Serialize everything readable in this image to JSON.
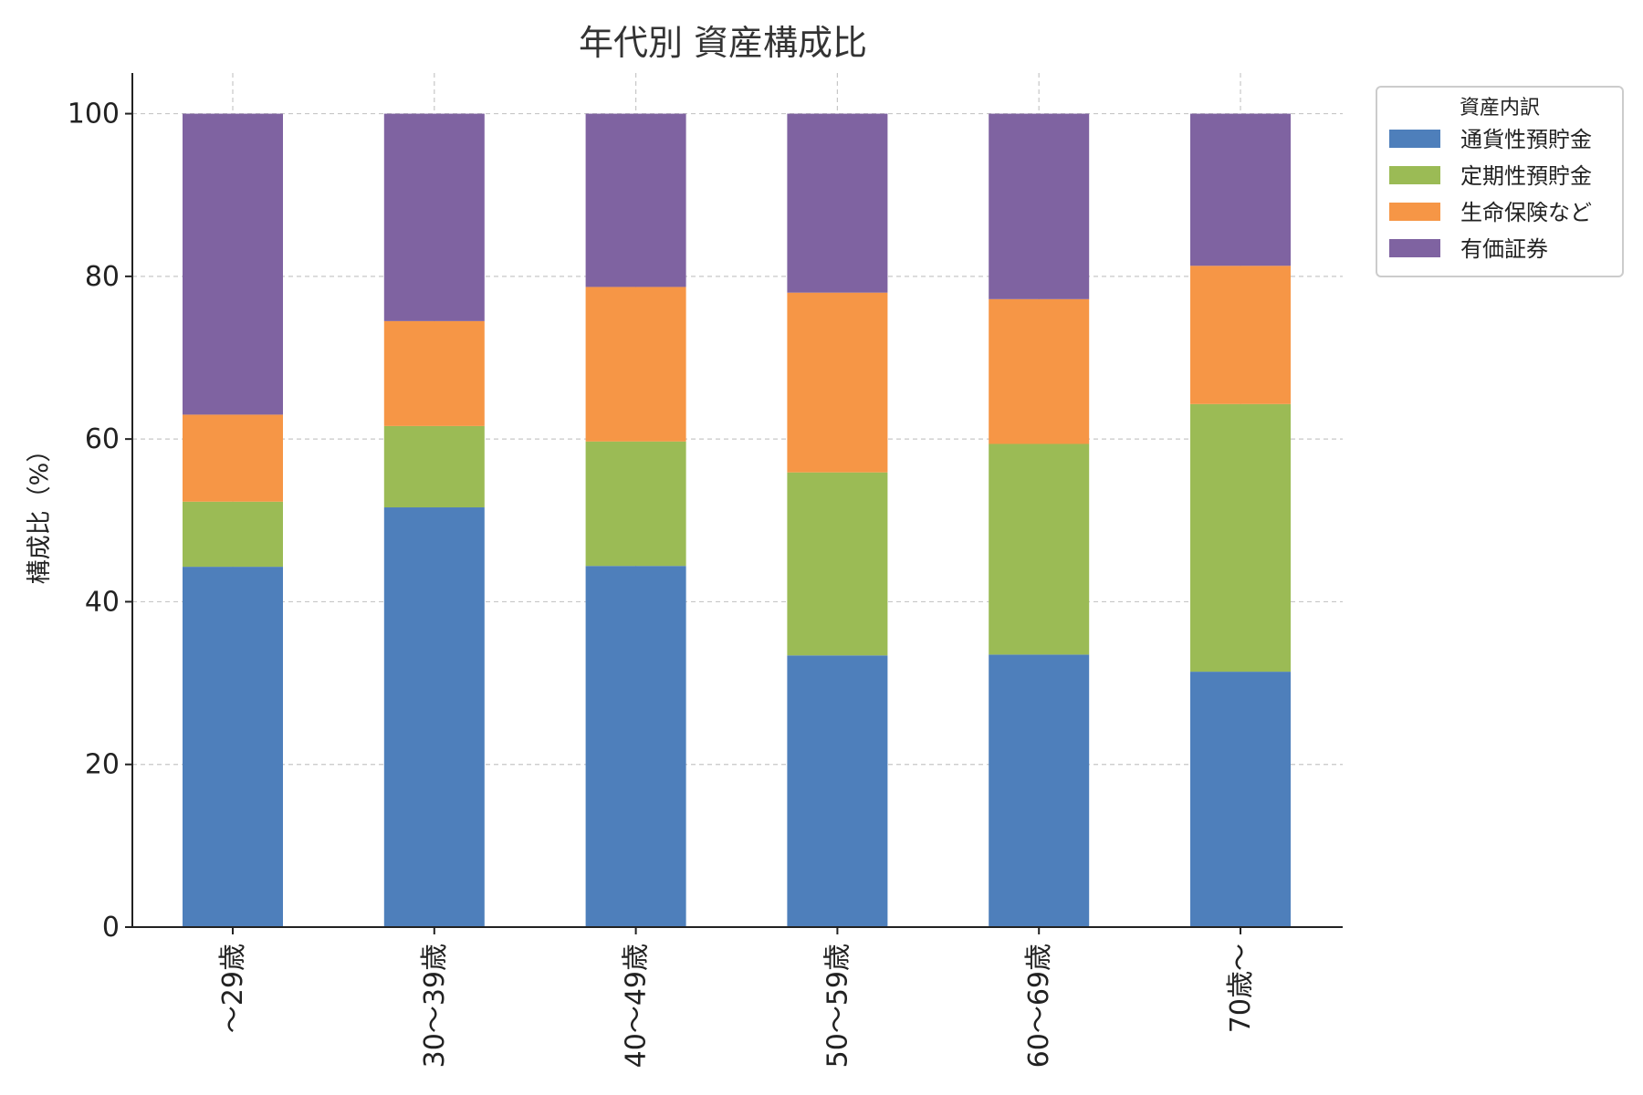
{
  "chart_data": {
    "type": "bar",
    "stacked": true,
    "title": "年代別 資産構成比",
    "xlabel": "",
    "ylabel": "構成比（%）",
    "ylim": [
      0,
      105
    ],
    "yticks": [
      "0",
      "20",
      "40",
      "60",
      "80",
      "100"
    ],
    "categories": [
      "～29歳",
      "30～39歳",
      "40～49歳",
      "50～59歳",
      "60～69歳",
      "70歳～"
    ],
    "grid": true,
    "legend": {
      "title": "資産内訳",
      "position": "top-right outside"
    },
    "series": [
      {
        "name": "通貨性預貯金",
        "color": "#4e7fbb",
        "values": [
          44.3,
          51.6,
          44.4,
          33.4,
          33.5,
          31.4
        ]
      },
      {
        "name": "定期性預貯金",
        "color": "#9bbb55",
        "values": [
          8.0,
          10.0,
          15.3,
          22.5,
          25.9,
          32.9
        ]
      },
      {
        "name": "生命保険など",
        "color": "#f69646",
        "values": [
          10.7,
          12.9,
          19.0,
          22.1,
          17.8,
          17.0
        ]
      },
      {
        "name": "有価証券",
        "color": "#7f63a1",
        "values": [
          37.0,
          25.5,
          21.3,
          22.0,
          22.8,
          18.7
        ]
      }
    ]
  }
}
